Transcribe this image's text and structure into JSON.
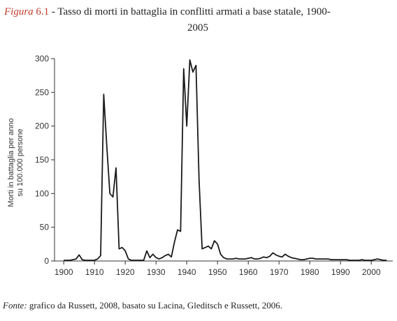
{
  "caption": {
    "label": "Figura",
    "number": "6.1",
    "text_line1": " - Tasso di morti in battaglia in conflitti armati a base statale, 1900-",
    "text_line2": "2005"
  },
  "source": {
    "label": "Fonte:",
    "text": " grafico da Russett, 2008, basato su Lacina, Gleditsch e Russett, 2006."
  },
  "chart_data": {
    "type": "line",
    "title": "",
    "xlabel": "",
    "ylabel": "Morti in battaglia per anno su 100.000 persone",
    "ylabel_lines": [
      "Morti in battaglia per anno",
      "su 100.000 persone"
    ],
    "xlim": [
      1897,
      2007
    ],
    "ylim": [
      0,
      300
    ],
    "xticks": [
      1900,
      1910,
      1920,
      1930,
      1940,
      1950,
      1960,
      1970,
      1980,
      1990,
      2000
    ],
    "xtick_labels": [
      "1900",
      "1910",
      "1920",
      "1930",
      "1940",
      "1950",
      "1960",
      "1970",
      "1980",
      "1990",
      "2000"
    ],
    "yticks": [
      0,
      50,
      100,
      150,
      200,
      250,
      300
    ],
    "ytick_labels": [
      "0",
      "50",
      "100",
      "150",
      "200",
      "250",
      "300"
    ],
    "grid": false,
    "line_color": "#1a1a1a",
    "series": [
      {
        "x": [
          1900,
          1901,
          1902,
          1903,
          1904,
          1905,
          1906,
          1907,
          1908,
          1909,
          1910,
          1911,
          1912,
          1913,
          1914,
          1915,
          1916,
          1917,
          1918,
          1919,
          1920,
          1921,
          1922,
          1923,
          1924,
          1925,
          1926,
          1927,
          1928,
          1929,
          1930,
          1931,
          1932,
          1933,
          1934,
          1935,
          1936,
          1937,
          1938,
          1939,
          1940,
          1941,
          1942,
          1943,
          1944,
          1945,
          1946,
          1947,
          1948,
          1949,
          1950,
          1951,
          1952,
          1953,
          1954,
          1955,
          1956,
          1957,
          1958,
          1959,
          1960,
          1961,
          1962,
          1963,
          1964,
          1965,
          1966,
          1967,
          1968,
          1969,
          1970,
          1971,
          1972,
          1973,
          1974,
          1975,
          1976,
          1977,
          1978,
          1979,
          1980,
          1981,
          1982,
          1983,
          1984,
          1985,
          1986,
          1987,
          1988,
          1989,
          1990,
          1991,
          1992,
          1993,
          1994,
          1995,
          1996,
          1997,
          1998,
          1999,
          2000,
          2001,
          2002,
          2003,
          2004,
          2005
        ],
        "y": [
          1,
          1,
          1,
          2,
          3,
          9,
          2,
          1,
          1,
          1,
          1,
          3,
          8,
          247,
          170,
          100,
          95,
          138,
          18,
          20,
          15,
          3,
          1,
          1,
          1,
          1,
          1,
          15,
          5,
          10,
          5,
          3,
          5,
          8,
          10,
          6,
          28,
          46,
          44,
          285,
          200,
          298,
          280,
          290,
          120,
          18,
          20,
          22,
          18,
          30,
          25,
          10,
          5,
          3,
          3,
          3,
          4,
          3,
          3,
          3,
          4,
          5,
          3,
          3,
          4,
          6,
          5,
          7,
          12,
          9,
          7,
          6,
          10,
          7,
          5,
          4,
          3,
          2,
          2,
          3,
          4,
          4,
          3,
          3,
          3,
          3,
          3,
          2,
          2,
          2,
          2,
          2,
          2,
          1,
          1,
          1,
          1,
          2,
          1,
          1,
          1,
          2,
          3,
          2,
          1,
          1
        ]
      }
    ]
  }
}
